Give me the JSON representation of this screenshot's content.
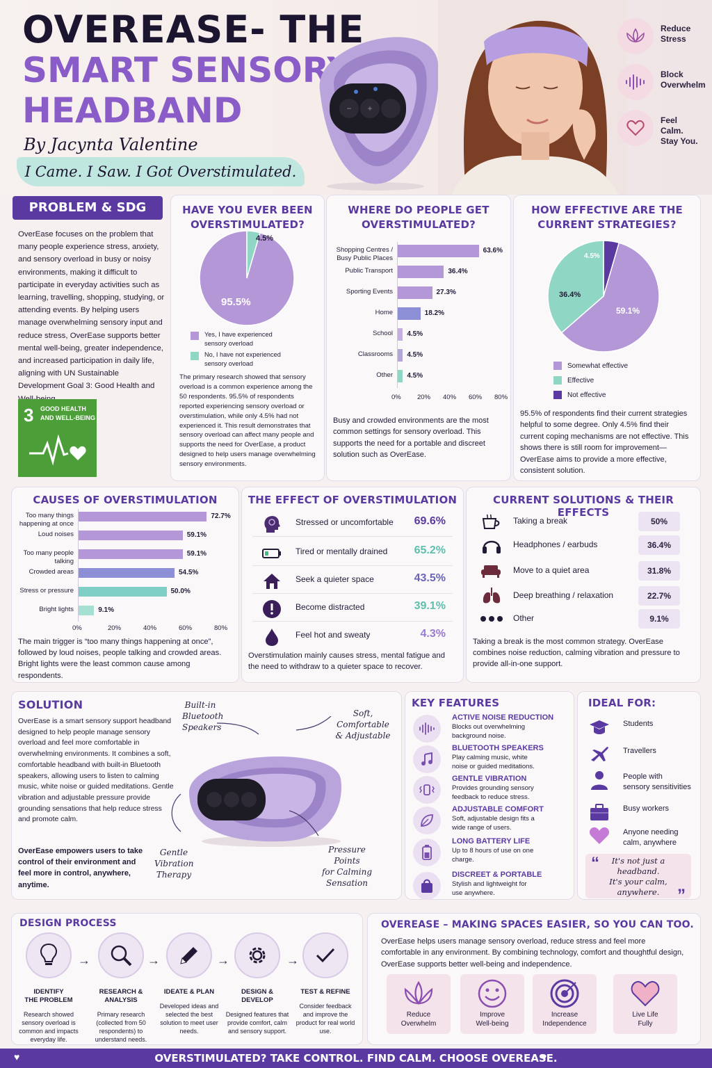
{
  "header": {
    "title_line1": "OVEREASE- THE",
    "title_line2": "SMART SENSORY",
    "title_line3": "HEADBAND",
    "byline": "By Jacynta Valentine",
    "tagline": "I Came. I Saw. I Got Overstimulated.",
    "benefits": [
      {
        "icon": "lotus-icon",
        "label_l1": "Reduce",
        "label_l2": "Stress"
      },
      {
        "icon": "soundwave-icon",
        "label_l1": "Block",
        "label_l2": "Overwhelm"
      },
      {
        "icon": "heart-icon",
        "label_l1": "Feel Calm.",
        "label_l2": "Stay You."
      }
    ]
  },
  "problem": {
    "heading": "PROBLEM & SDG",
    "text": "OverEase focuses on the problem that many people experience stress, anxiety, and sensory overload in busy or noisy environments, making it difficult to participate in everyday activities such as learning, travelling, shopping, studying, or attending events. By helping users manage overwhelming sensory input and reduce stress, OverEase supports better mental well-being, greater independence, and increased participation in daily life, aligning with UN Sustainable Development Goal 3: Good Health and Well-being.",
    "sdg_number": "3",
    "sdg_l1": "GOOD HEALTH",
    "sdg_l2": "AND WELL-BEING",
    "sdg_color": "#4c9f38"
  },
  "overstimulated": {
    "heading_l1": "HAVE YOU EVER BEEN",
    "heading_l2": "OVERSTIMULATED?",
    "big_label": "95.5%",
    "small_label": "4.5%",
    "legend": [
      {
        "label_l1": "Yes, I have experienced",
        "label_l2": "sensory overload",
        "color": "#b497d6"
      },
      {
        "label_l1": "No, I have not experienced",
        "label_l2": "sensory overload",
        "color": "#8fd6c4"
      }
    ],
    "text": "The primary research showed that sensory overload is a common experience among the 50 respondents. 95.5% of respondents reported experiencing sensory overload or overstimulation, while only 4.5% had not experienced it. This result demonstrates that sensory overload can affect many people and supports the need for OverEase, a product designed to help users manage overwhelming sensory environments."
  },
  "where": {
    "heading_l1": "WHERE DO PEOPLE GET",
    "heading_l2": "OVERSTIMULATED?",
    "ticks": [
      "0%",
      "20%",
      "40%",
      "60%",
      "80%"
    ],
    "text": "Busy and crowded environments are the most common settings for sensory overload. This supports the need for a portable and discreet solution such as OverEase."
  },
  "effective": {
    "heading_l1": "HOW EFFECTIVE ARE THE",
    "heading_l2": "CURRENT STRATEGIES?",
    "labels": [
      "59.1%",
      "36.4%",
      "4.5%"
    ],
    "legend": [
      "Somewhat effective",
      "Effective",
      "Not effective"
    ],
    "text": "95.5% of respondents find their current strategies helpful to some degree. Only 4.5% find their current coping mechanisms are not effective. This shows there is still room for improvement—OverEase aims to provide a more effective, consistent solution."
  },
  "causes": {
    "heading": "CAUSES OF OVERSTIMULATION",
    "ticks": [
      "0%",
      "20%",
      "40%",
      "60%",
      "80%"
    ],
    "text": "The main trigger is “too many things happening at once”, followed by loud noises, people talking and crowded areas. Bright lights were the least common cause among respondents."
  },
  "effects": {
    "heading": "THE EFFECT OF OVERSTIMULATION",
    "rows": [
      {
        "icon": "head-stress-icon",
        "label": "Stressed or uncomfortable",
        "value": "69.6%",
        "color": "#5a3aa0"
      },
      {
        "icon": "battery-low-icon",
        "label": "Tired or mentally drained",
        "value": "65.2%",
        "color": "#5cc0ad"
      },
      {
        "icon": "house-icon",
        "label": "Seek a quieter space",
        "value": "43.5%",
        "color": "#6b64b8"
      },
      {
        "icon": "alert-icon",
        "label": "Become distracted",
        "value": "39.1%",
        "color": "#5cc0ad"
      },
      {
        "icon": "drop-icon",
        "label": "Feel hot and sweaty",
        "value": "4.3%",
        "color": "#9a7ad0"
      }
    ],
    "text": "Overstimulation mainly causes stress, mental fatigue and the need to withdraw to a quieter space to recover."
  },
  "solutions": {
    "heading": "CURRENT SOLUTIONS & THEIR EFFECTS",
    "rows": [
      {
        "icon": "cup-icon",
        "label": "Taking a break",
        "value": "50%"
      },
      {
        "icon": "headphones-icon",
        "label": "Headphones / earbuds",
        "value": "36.4%"
      },
      {
        "icon": "sofa-icon",
        "label": "Move to a quiet area",
        "value": "31.8%"
      },
      {
        "icon": "lungs-icon",
        "label": "Deep breathing / relaxation",
        "value": "22.7%"
      },
      {
        "icon": "dots-icon",
        "label": "Other",
        "value": "9.1%"
      }
    ],
    "text": "Taking a break is the most common strategy. OverEase combines noise reduction, calming vibration and pressure to provide all-in-one support."
  },
  "solution": {
    "heading": "SOLUTION",
    "text": "OverEase is a smart sensory support headband designed to help people manage sensory overload and feel more comfortable in overwhelming environments. It combines a soft, comfortable headband with built-in Bluetooth speakers, allowing users to listen to calming music, white noise or guided meditations. Gentle vibration and adjustable pressure provide grounding sensations that help reduce stress and promote calm.",
    "bold": "OverEase empowers users to take control of their environment and feel more in control, anywhere, anytime.",
    "callouts": {
      "speakers_l1": "Built-in",
      "speakers_l2": "Bluetooth",
      "speakers_l3": "Speakers",
      "soft_l1": "Soft, Comfortable",
      "soft_l2": "& Adjustable",
      "vibration_l1": "Gentle",
      "vibration_l2": "Vibration",
      "vibration_l3": "Therapy",
      "pressure_l1": "Pressure Points",
      "pressure_l2": "for Calming",
      "pressure_l3": "Sensation"
    }
  },
  "features": {
    "heading": "KEY FEATURES",
    "items": [
      {
        "icon": "soundwave-icon",
        "title": "ACTIVE NOISE REDUCTION",
        "desc": "Blocks out overwhelming background noise."
      },
      {
        "icon": "music-note-icon",
        "title": "BLUETOOTH SPEAKERS",
        "desc": "Play calming music, white noise or guided meditations."
      },
      {
        "icon": "vibration-icon",
        "title": "GENTLE VIBRATION",
        "desc": "Provides grounding sensory feedback to reduce stress."
      },
      {
        "icon": "leaf-icon",
        "title": "ADJUSTABLE COMFORT",
        "desc": "Soft, adjustable design fits a wide range of users."
      },
      {
        "icon": "battery-icon",
        "title": "LONG BATTERY LIFE",
        "desc": "Up to 8 hours of use on one charge."
      },
      {
        "icon": "bag-icon",
        "title": "DISCREET & PORTABLE",
        "desc": "Stylish and lightweight for use anywhere."
      }
    ]
  },
  "ideal": {
    "heading": "IDEAL FOR:",
    "items": [
      {
        "icon": "grad-cap-icon",
        "label_l1": "Students",
        "label_l2": ""
      },
      {
        "icon": "plane-icon",
        "label_l1": "Travellers",
        "label_l2": ""
      },
      {
        "icon": "person-icon",
        "label_l1": "People with",
        "label_l2": "sensory sensitivities"
      },
      {
        "icon": "briefcase-icon",
        "label_l1": "Busy workers",
        "label_l2": ""
      },
      {
        "icon": "heart-icon",
        "label_l1": "Anyone needing",
        "label_l2": "calm, anywhere"
      }
    ],
    "quote_l1": "It's not just a",
    "quote_l2": "headband.",
    "quote_l3": "It's your calm,",
    "quote_l4": "anywhere."
  },
  "design": {
    "heading": "DESIGN PROCESS",
    "steps": [
      {
        "icon": "lightbulb-icon",
        "title_l1": "IDENTIFY",
        "title_l2": "THE PROBLEM",
        "desc": "Research showed sensory overload is common and impacts everyday life."
      },
      {
        "icon": "magnifier-icon",
        "title_l1": "RESEARCH &",
        "title_l2": "ANALYSIS",
        "desc": "Primary research (collected from 50 respondents) to understand needs."
      },
      {
        "icon": "pencil-icon",
        "title_l1": "IDEATE & PLAN",
        "title_l2": "",
        "desc": "Developed ideas and selected the best solution to meet user needs."
      },
      {
        "icon": "gear-icon",
        "title_l1": "DESIGN & DEVELOP",
        "title_l2": "",
        "desc": "Designed features that provide comfort, calm and sensory support."
      },
      {
        "icon": "check-icon",
        "title_l1": "TEST & REFINE",
        "title_l2": "",
        "desc": "Consider feedback and improve the product for real world use."
      }
    ]
  },
  "impact": {
    "heading": "OVEREASE – MAKING SPACES EASIER, SO YOU CAN TOO.",
    "text": "OverEase helps users manage sensory overload, reduce stress and feel more comfortable in any environment. By combining technology, comfort and thoughtful design, OverEase supports better well-being and independence.",
    "items": [
      {
        "icon": "lotus-icon",
        "label_l1": "Reduce",
        "label_l2": "Overwhelm"
      },
      {
        "icon": "smile-icon",
        "label_l1": "Improve",
        "label_l2": "Well-being"
      },
      {
        "icon": "target-icon",
        "label_l1": "Increase",
        "label_l2": "Independence"
      },
      {
        "icon": "heart-icon",
        "label_l1": "Live Life",
        "label_l2": "Fully"
      }
    ]
  },
  "footer": {
    "text": "OVERSTIMULATED? TAKE CONTROL. FIND CALM. CHOOSE OVEREASE."
  },
  "chart_data": [
    {
      "type": "pie",
      "title": "HAVE YOU EVER BEEN OVERSTIMULATED?",
      "categories": [
        "Yes, I have experienced sensory overload",
        "No, I have not experienced sensory overload"
      ],
      "values": [
        95.5,
        4.5
      ]
    },
    {
      "type": "bar",
      "title": "WHERE DO PEOPLE GET OVERSTIMULATED?",
      "categories": [
        "Shopping Centres / Busy Public Places",
        "Public Transport",
        "Sporting Events",
        "Home",
        "School",
        "Classrooms",
        "Other"
      ],
      "values": [
        63.6,
        36.4,
        27.3,
        18.2,
        4.5,
        4.5,
        4.5
      ],
      "value_labels": [
        "63.6%",
        "36.4%",
        "27.3%",
        "18.2%",
        "4.5%",
        "4.5%",
        "4.5%"
      ],
      "colors": [
        "#b497d6",
        "#b497d6",
        "#b497d6",
        "#8c8fd6",
        "#c4b0dc",
        "#b4a8d2",
        "#8fd6c4"
      ],
      "xlim": [
        0,
        80
      ]
    },
    {
      "type": "pie",
      "title": "HOW EFFECTIVE ARE THE CURRENT STRATEGIES?",
      "categories": [
        "Somewhat effective",
        "Effective",
        "Not effective"
      ],
      "values": [
        59.1,
        36.4,
        4.5
      ],
      "colors": [
        "#b497d6",
        "#8fd6c4",
        "#5a3aa0"
      ]
    },
    {
      "type": "bar",
      "title": "CAUSES OF OVERSTIMULATION",
      "categories": [
        "Too many things happening at once",
        "Loud noises",
        "Too many people talking",
        "Crowded areas",
        "Stress or pressure",
        "Bright lights"
      ],
      "values": [
        72.7,
        59.1,
        59.1,
        54.5,
        50.0,
        9.1
      ],
      "value_labels": [
        "72.7%",
        "59.1%",
        "59.1%",
        "54.5%",
        "50.0%",
        "9.1%"
      ],
      "colors": [
        "#b497d6",
        "#b497d6",
        "#b497d6",
        "#8c8fd6",
        "#7fcfc6",
        "#a6e0d2"
      ],
      "xlim": [
        0,
        80
      ]
    }
  ]
}
